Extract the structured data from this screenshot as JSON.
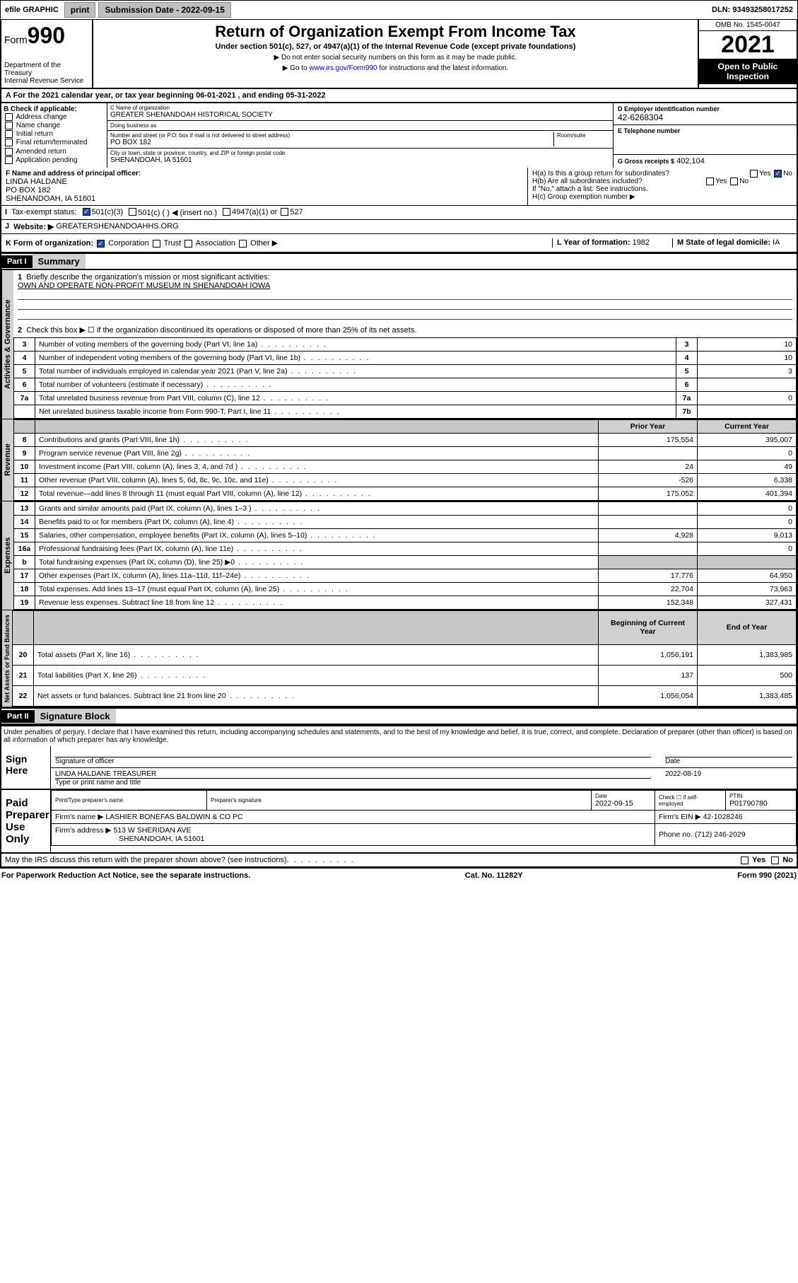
{
  "topbar": {
    "efile": "efile GRAPHIC",
    "print": "print",
    "submission_label": "Submission Date - 2022-09-15",
    "dln": "DLN: 93493258017252"
  },
  "header": {
    "form_word": "Form",
    "form_num": "990",
    "dept": "Department of the Treasury",
    "irs": "Internal Revenue Service",
    "title": "Return of Organization Exempt From Income Tax",
    "subtitle": "Under section 501(c), 527, or 4947(a)(1) of the Internal Revenue Code (except private foundations)",
    "warn": "▶ Do not enter social security numbers on this form as it may be made public.",
    "goto": "▶ Go to www.irs.gov/Form990 for instructions and the latest information.",
    "goto_link": "www.irs.gov/Form990",
    "omb": "OMB No. 1545-0047",
    "year": "2021",
    "open": "Open to Public Inspection"
  },
  "period": {
    "text": "A For the 2021 calendar year, or tax year beginning 06-01-2021   , and ending 05-31-2022"
  },
  "B": {
    "label": "B Check if applicable:",
    "items": [
      "Address change",
      "Name change",
      "Initial return",
      "Final return/terminated",
      "Amended return",
      "Application pending"
    ]
  },
  "C": {
    "name_lbl": "C Name of organization",
    "name": "GREATER SHENANDOAH HISTORICAL SOCIETY",
    "dba_lbl": "Doing business as",
    "dba": "",
    "addr_lbl": "Number and street (or P.O. box if mail is not delivered to street address)",
    "room_lbl": "Room/suite",
    "addr": "PO BOX 182",
    "city_lbl": "City or town, state or province, country, and ZIP or foreign postal code",
    "city": "SHENANDOAH, IA  51601"
  },
  "D": {
    "lbl": "D Employer identification number",
    "val": "42-6268304"
  },
  "E": {
    "lbl": "E Telephone number",
    "val": ""
  },
  "G": {
    "lbl": "G Gross receipts $",
    "val": "402,104"
  },
  "F": {
    "lbl": "F Name and address of principal officer:",
    "name": "LINDA HALDANE",
    "addr1": "PO BOX 182",
    "addr2": "SHENANDOAH, IA  51601"
  },
  "H": {
    "a": "H(a)  Is this a group return for subordinates?",
    "b": "H(b)  Are all subordinates included?",
    "b_note": "If \"No,\" attach a list. See instructions.",
    "c": "H(c)  Group exemption number ▶",
    "yes": "Yes",
    "no": "No"
  },
  "I": {
    "lbl": "Tax-exempt status:",
    "opt1": "501(c)(3)",
    "opt2": "501(c) (  ) ◀ (insert no.)",
    "opt3": "4947(a)(1) or",
    "opt4": "527"
  },
  "J": {
    "lbl": "Website: ▶",
    "val": "GREATERSHENANDOAHHS.ORG"
  },
  "K": {
    "lbl": "K Form of organization:",
    "opts": [
      "Corporation",
      "Trust",
      "Association",
      "Other ▶"
    ]
  },
  "L": {
    "lbl": "L Year of formation:",
    "val": "1982"
  },
  "M": {
    "lbl": "M State of legal domicile:",
    "val": "IA"
  },
  "part1": {
    "hdr": "Part I",
    "title": "Summary",
    "q1": "Briefly describe the organization's mission or most significant activities:",
    "mission": "OWN AND OPERATE NON-PROFIT MUSEUM IN SHENANDOAH IOWA",
    "q2": "Check this box ▶ ☐  if the organization discontinued its operations or disposed of more than 25% of its net assets.",
    "rows_gov": [
      {
        "n": "3",
        "t": "Number of voting members of the governing body (Part VI, line 1a)",
        "box": "3",
        "v": "10"
      },
      {
        "n": "4",
        "t": "Number of independent voting members of the governing body (Part VI, line 1b)",
        "box": "4",
        "v": "10"
      },
      {
        "n": "5",
        "t": "Total number of individuals employed in calendar year 2021 (Part V, line 2a)",
        "box": "5",
        "v": "3"
      },
      {
        "n": "6",
        "t": "Total number of volunteers (estimate if necessary)",
        "box": "6",
        "v": ""
      },
      {
        "n": "7a",
        "t": "Total unrelated business revenue from Part VIII, column (C), line 12",
        "box": "7a",
        "v": "0"
      },
      {
        "n": "",
        "t": "Net unrelated business taxable income from Form 990-T, Part I, line 11",
        "box": "7b",
        "v": ""
      }
    ],
    "col_prior": "Prior Year",
    "col_current": "Current Year",
    "rows_rev": [
      {
        "n": "8",
        "t": "Contributions and grants (Part VIII, line 1h)",
        "p": "175,554",
        "c": "395,007"
      },
      {
        "n": "9",
        "t": "Program service revenue (Part VIII, line 2g)",
        "p": "",
        "c": "0"
      },
      {
        "n": "10",
        "t": "Investment income (Part VIII, column (A), lines 3, 4, and 7d )",
        "p": "24",
        "c": "49"
      },
      {
        "n": "11",
        "t": "Other revenue (Part VIII, column (A), lines 5, 6d, 8c, 9c, 10c, and 11e)",
        "p": "-526",
        "c": "6,338"
      },
      {
        "n": "12",
        "t": "Total revenue—add lines 8 through 11 (must equal Part VIII, column (A), line 12)",
        "p": "175,052",
        "c": "401,394"
      }
    ],
    "rows_exp": [
      {
        "n": "13",
        "t": "Grants and similar amounts paid (Part IX, column (A), lines 1–3 )",
        "p": "",
        "c": "0"
      },
      {
        "n": "14",
        "t": "Benefits paid to or for members (Part IX, column (A), line 4)",
        "p": "",
        "c": "0"
      },
      {
        "n": "15",
        "t": "Salaries, other compensation, employee benefits (Part IX, column (A), lines 5–10)",
        "p": "4,928",
        "c": "9,013"
      },
      {
        "n": "16a",
        "t": "Professional fundraising fees (Part IX, column (A), line 11e)",
        "p": "",
        "c": "0"
      },
      {
        "n": "b",
        "t": "Total fundraising expenses (Part IX, column (D), line 25) ▶0",
        "p": "grey",
        "c": "grey"
      },
      {
        "n": "17",
        "t": "Other expenses (Part IX, column (A), lines 11a–11d, 11f–24e)",
        "p": "17,776",
        "c": "64,950"
      },
      {
        "n": "18",
        "t": "Total expenses. Add lines 13–17 (must equal Part IX, column (A), line 25)",
        "p": "22,704",
        "c": "73,963"
      },
      {
        "n": "19",
        "t": "Revenue less expenses. Subtract line 18 from line 12",
        "p": "152,348",
        "c": "327,431"
      }
    ],
    "col_begin": "Beginning of Current Year",
    "col_end": "End of Year",
    "rows_net": [
      {
        "n": "20",
        "t": "Total assets (Part X, line 16)",
        "p": "1,056,191",
        "c": "1,383,985"
      },
      {
        "n": "21",
        "t": "Total liabilities (Part X, line 26)",
        "p": "137",
        "c": "500"
      },
      {
        "n": "22",
        "t": "Net assets or fund balances. Subtract line 21 from line 20",
        "p": "1,056,054",
        "c": "1,383,485"
      }
    ],
    "vtabs": [
      "Activities & Governance",
      "Revenue",
      "Expenses",
      "Net Assets or Fund Balances"
    ]
  },
  "part2": {
    "hdr": "Part II",
    "title": "Signature Block",
    "penalties": "Under penalties of perjury, I declare that I have examined this return, including accompanying schedules and statements, and to the best of my knowledge and belief, it is true, correct, and complete. Declaration of preparer (other than officer) is based on all information of which preparer has any knowledge."
  },
  "sign": {
    "here": "Sign Here",
    "sig_officer": "Signature of officer",
    "date": "Date",
    "date_val": "2022-08-19",
    "name": "LINDA HALDANE  TREASURER",
    "type_name": "Type or print name and title"
  },
  "paid": {
    "lbl": "Paid Preparer Use Only",
    "print_name": "Print/Type preparer's name",
    "prep_sig": "Preparer's signature",
    "pdate": "Date",
    "pdate_val": "2022-09-15",
    "check_self": "Check ☐ if self-employed",
    "ptin_lbl": "PTIN",
    "ptin": "P01790780",
    "firm_name_lbl": "Firm's name    ▶",
    "firm_name": "LASHIER BONEFAS BALDWIN & CO PC",
    "firm_ein_lbl": "Firm's EIN ▶",
    "firm_ein": "42-1028246",
    "firm_addr_lbl": "Firm's address ▶",
    "firm_addr1": "513 W SHERIDAN AVE",
    "firm_addr2": "SHENANDOAH, IA  51601",
    "phone_lbl": "Phone no.",
    "phone": "(712) 246-2029"
  },
  "may_irs": "May the IRS discuss this return with the preparer shown above? (see instructions)",
  "footer": {
    "pra": "For Paperwork Reduction Act Notice, see the separate instructions.",
    "cat": "Cat. No. 11282Y",
    "form": "Form 990 (2021)"
  }
}
